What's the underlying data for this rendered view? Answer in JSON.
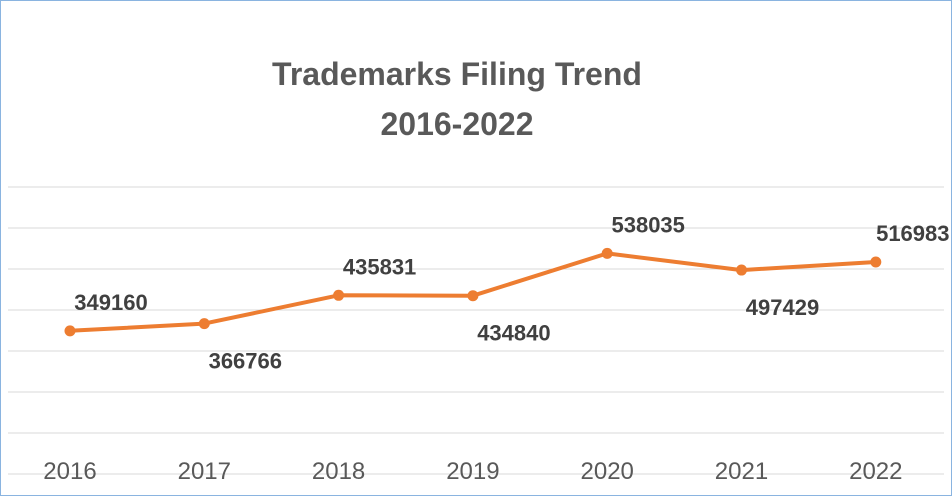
{
  "chart_data": {
    "type": "line",
    "title_line1": "Trademarks Filing Trend",
    "title_line2": "2016-2022",
    "categories": [
      "2016",
      "2017",
      "2018",
      "2019",
      "2020",
      "2021",
      "2022"
    ],
    "series": [
      {
        "values": [
          349160,
          366766,
          435831,
          434840,
          538035,
          497429,
          516983
        ]
      }
    ],
    "label_positions": [
      "above",
      "below",
      "above",
      "below",
      "above",
      "below",
      "above"
    ],
    "ylim": [
      0,
      700000
    ],
    "grid": true,
    "legend": "none",
    "line_color": "#ed7d31",
    "grid_color": "#d9d9d9"
  }
}
